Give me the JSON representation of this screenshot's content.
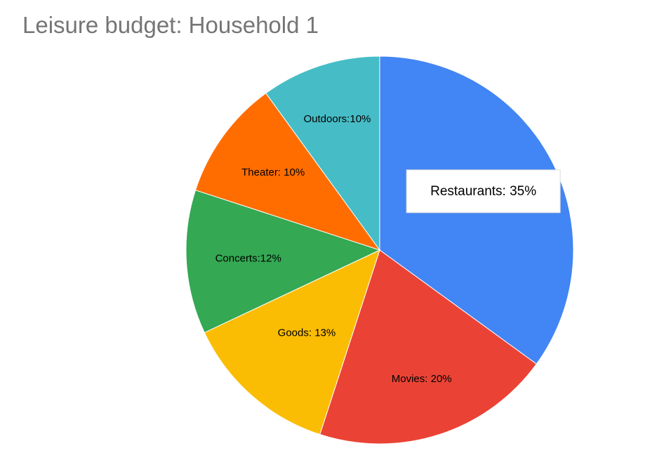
{
  "chart_data": {
    "type": "pie",
    "title": "Leisure budget: Household 1",
    "slices": [
      {
        "name": "Restaurants",
        "value": 35,
        "label": "Restaurants: 35%",
        "color": "#4285f4",
        "highlighted": true
      },
      {
        "name": "Movies",
        "value": 20,
        "label": "Movies: 20%",
        "color": "#ea4335"
      },
      {
        "name": "Goods",
        "value": 13,
        "label": "Goods: 13%",
        "color": "#fbbc04"
      },
      {
        "name": "Concerts",
        "value": 12,
        "label": "Concerts:12%",
        "color": "#34a853"
      },
      {
        "name": "Theater",
        "value": 10,
        "label": "Theater: 10%",
        "color": "#ff6d01"
      },
      {
        "name": "Outdoors",
        "value": 10,
        "label": "Outdoors:10%",
        "color": "#46bdc6"
      }
    ],
    "start_angle": "12 o'clock",
    "direction": "clockwise",
    "legend": "none"
  }
}
